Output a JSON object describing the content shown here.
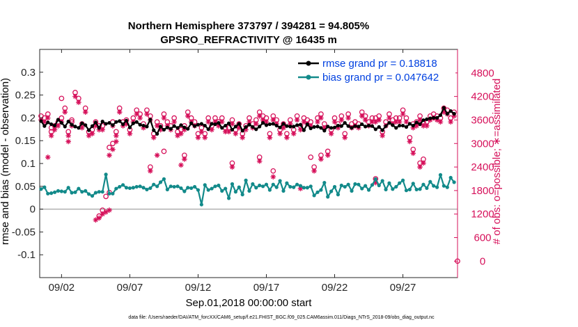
{
  "chart_data": {
    "type": "line",
    "title_line1": "Northern Hemisphere 373797 / 394281 = 94.805%",
    "title_line2": "GPSRO_REFRACTIVITY @ 16435 m",
    "xlabel": "Sep.01,2018 00:00:00 start",
    "ylabel_left": "rmse and bias (model - observation)",
    "ylabel_right": "# of obs: o=possible; ∗=assimilated",
    "footer": "data file: /Users/raeder/DAI/ATM_forcXX/CAM6_setup/f.e21.FHIST_BGC.f09_025.CAM6assim.011/Diags_NTrS_2018-09/obs_diag_output.nc",
    "xlim_days": [
      0.4,
      31.0
    ],
    "ylim_left": [
      -0.15,
      0.35
    ],
    "ylim_right": [
      -420,
      5400
    ],
    "x_ticks": [
      {
        "day": 2,
        "label": "09/02"
      },
      {
        "day": 7,
        "label": "09/07"
      },
      {
        "day": 12,
        "label": "09/12"
      },
      {
        "day": 17,
        "label": "09/17"
      },
      {
        "day": 22,
        "label": "09/22"
      },
      {
        "day": 27,
        "label": "09/27"
      }
    ],
    "y_left_ticks": [
      {
        "value": 0.3,
        "label": "0.3"
      },
      {
        "value": 0.25,
        "label": "0.25"
      },
      {
        "value": 0.2,
        "label": "0.2"
      },
      {
        "value": 0.15,
        "label": "0.15"
      },
      {
        "value": 0.1,
        "label": "0.1"
      },
      {
        "value": 0.05,
        "label": "0.05"
      },
      {
        "value": 0,
        "label": "0"
      },
      {
        "value": -0.05,
        "label": "-0.05"
      },
      {
        "value": -0.1,
        "label": "-0.1"
      }
    ],
    "y_right_ticks": [
      {
        "value": 4800,
        "label": "4800"
      },
      {
        "value": 4200,
        "label": "4200"
      },
      {
        "value": 3600,
        "label": "3600"
      },
      {
        "value": 3000,
        "label": "3000"
      },
      {
        "value": 2400,
        "label": "2400"
      },
      {
        "value": 1800,
        "label": "1800"
      },
      {
        "value": 1200,
        "label": "1200"
      },
      {
        "value": 600,
        "label": "600"
      },
      {
        "value": 0,
        "label": "0"
      }
    ],
    "zero_line": 0,
    "legend": [
      {
        "key": "rmse",
        "label": "rmse grand pr = 0.18818",
        "color": "#000000",
        "text_color": "#0040e0"
      },
      {
        "key": "bias",
        "label": "bias grand pr = 0.047642",
        "color": "#128a8a",
        "text_color": "#0040e0"
      }
    ],
    "colors": {
      "rmse": "#000000",
      "bias": "#128a8a",
      "obs": "#d6105a",
      "zero": "#b0b0b0",
      "right_axis": "#d6105a"
    },
    "x_days": [
      0.5,
      0.75,
      1.0,
      1.25,
      1.5,
      1.75,
      2.0,
      2.25,
      2.5,
      2.75,
      3.0,
      3.25,
      3.5,
      3.75,
      4.0,
      4.25,
      4.5,
      4.75,
      5.0,
      5.25,
      5.5,
      5.75,
      6.0,
      6.25,
      6.5,
      6.75,
      7.0,
      7.25,
      7.5,
      7.75,
      8.0,
      8.25,
      8.5,
      8.75,
      9.0,
      9.25,
      9.5,
      9.75,
      10.0,
      10.25,
      10.5,
      10.75,
      11.0,
      11.25,
      11.5,
      11.75,
      12.0,
      12.25,
      12.5,
      12.75,
      13.0,
      13.25,
      13.5,
      13.75,
      14.0,
      14.25,
      14.5,
      14.75,
      15.0,
      15.25,
      15.5,
      15.75,
      16.0,
      16.25,
      16.5,
      16.75,
      17.0,
      17.25,
      17.5,
      17.75,
      18.0,
      18.25,
      18.5,
      18.75,
      19.0,
      19.25,
      19.5,
      19.75,
      20.0,
      20.25,
      20.5,
      20.75,
      21.0,
      21.25,
      21.5,
      21.75,
      22.0,
      22.25,
      22.5,
      22.75,
      23.0,
      23.25,
      23.5,
      23.75,
      24.0,
      24.25,
      24.5,
      24.75,
      25.0,
      25.25,
      25.5,
      25.75,
      26.0,
      26.25,
      26.5,
      26.75,
      27.0,
      27.25,
      27.5,
      27.75,
      28.0,
      28.25,
      28.5,
      28.75,
      29.0,
      29.25,
      29.5,
      29.75,
      30.0,
      30.25,
      30.5,
      30.75
    ],
    "rmse": [
      0.193,
      0.182,
      0.19,
      0.186,
      0.183,
      0.196,
      0.189,
      0.181,
      0.192,
      0.185,
      0.181,
      0.178,
      0.188,
      0.184,
      0.173,
      0.182,
      0.19,
      0.178,
      0.192,
      0.187,
      0.189,
      0.184,
      0.191,
      0.193,
      0.186,
      0.194,
      0.179,
      0.188,
      0.191,
      0.185,
      0.183,
      0.181,
      0.196,
      0.173,
      0.165,
      0.181,
      0.174,
      0.179,
      0.176,
      0.182,
      0.178,
      0.184,
      0.179,
      0.176,
      0.188,
      0.182,
      0.185,
      0.187,
      0.183,
      0.175,
      0.187,
      0.186,
      0.189,
      0.178,
      0.183,
      0.188,
      0.174,
      0.181,
      0.187,
      0.172,
      0.18,
      0.185,
      0.18,
      0.175,
      0.181,
      0.189,
      0.184,
      0.186,
      0.187,
      0.183,
      0.179,
      0.187,
      0.182,
      0.181,
      0.181,
      0.184,
      0.185,
      0.173,
      0.186,
      0.177,
      0.18,
      0.181,
      0.178,
      0.172,
      0.181,
      0.178,
      0.179,
      0.183,
      0.182,
      0.189,
      0.182,
      0.178,
      0.182,
      0.181,
      0.186,
      0.181,
      0.183,
      0.182,
      0.175,
      0.18,
      0.173,
      0.182,
      0.189,
      0.184,
      0.178,
      0.183,
      0.183,
      0.18,
      0.187,
      0.183,
      0.19,
      0.186,
      0.195,
      0.197,
      0.199,
      0.2,
      0.2,
      0.206,
      0.222,
      0.209,
      0.215,
      0.209,
      0.202,
      0.198,
      0.195,
      0.196
    ],
    "bias": [
      0.044,
      0.048,
      0.034,
      0.035,
      0.037,
      0.04,
      0.039,
      0.038,
      0.047,
      0.036,
      0.037,
      0.045,
      0.038,
      0.04,
      0.033,
      0.029,
      0.036,
      0.038,
      0.038,
      0.076,
      0.034,
      0.034,
      0.045,
      0.049,
      0.053,
      0.047,
      0.046,
      0.047,
      0.049,
      0.05,
      0.047,
      0.043,
      0.046,
      0.054,
      0.05,
      0.059,
      0.066,
      0.043,
      0.05,
      0.049,
      0.05,
      0.046,
      0.039,
      0.047,
      0.046,
      0.049,
      0.042,
      0.01,
      0.053,
      0.042,
      0.045,
      0.05,
      0.052,
      0.04,
      0.045,
      0.024,
      0.055,
      0.038,
      0.048,
      0.032,
      0.063,
      0.04,
      0.055,
      0.047,
      0.052,
      0.05,
      0.054,
      0.042,
      0.054,
      0.048,
      0.062,
      0.04,
      0.057,
      0.049,
      0.048,
      0.054,
      0.051,
      0.047,
      0.047,
      0.05,
      0.03,
      0.037,
      0.042,
      0.058,
      0.027,
      0.039,
      0.049,
      0.032,
      0.052,
      0.049,
      0.054,
      0.04,
      0.055,
      0.054,
      0.045,
      0.051,
      0.042,
      0.053,
      0.066,
      0.052,
      0.062,
      0.043,
      0.057,
      0.044,
      0.049,
      0.057,
      0.063,
      0.041,
      0.043,
      0.056,
      0.043,
      0.044,
      0.054,
      0.046,
      0.06,
      0.051,
      0.048,
      0.075,
      0.051,
      0.048,
      0.069,
      0.059,
      0.052,
      0.06,
      0.055,
      0.05
    ],
    "obs_possible": [
      3700,
      3650,
      3750,
      3300,
      3450,
      3550,
      3650,
      3900,
      3300,
      3550,
      4300,
      4150,
      3500,
      3900,
      3300,
      3350,
      3550,
      3450,
      3450,
      1650,
      1750,
      3550,
      3300,
      3900,
      3550,
      3600,
      3350,
      3650,
      3850,
      3750,
      3500,
      3850,
      3700,
      3250,
      3550,
      3450,
      3750,
      3550,
      3450,
      3650,
      3300,
      3350,
      3450,
      3800,
      3650,
      3550,
      3250,
      3400,
      3250,
      3650,
      3450,
      3650,
      3550,
      3650,
      3400,
      3400,
      3600,
      3350,
      3500,
      3250,
      3450,
      3650,
      3500,
      3600,
      3800,
      3700,
      3650,
      3250,
      3700,
      3600,
      3350,
      3500,
      3250,
      3600,
      3350,
      3700,
      3450,
      3650,
      3600,
      3550,
      2400,
      3650,
      3750,
      3500,
      2800,
      3350,
      3650,
      3500,
      3700,
      3250,
      3750,
      3500,
      3550,
      3500,
      3800,
      3700,
      3550,
      3650,
      3650,
      3700,
      3300,
      3550,
      3750,
      3600,
      3650,
      3650,
      3850,
      3650,
      3150,
      3500,
      3550,
      3700,
      3550,
      3550,
      3700,
      3750,
      3700,
      3650,
      3900,
      3850,
      3650,
      3800,
      3650,
      3650,
      3750,
      3600
    ],
    "obs_assim": [
      3600,
      3550,
      3650,
      3200,
      3350,
      3450,
      3550,
      3800,
      3200,
      3450,
      4200,
      4050,
      3400,
      3800,
      3200,
      3250,
      3450,
      3350,
      3350,
      1250,
      1300,
      3450,
      3200,
      3800,
      3450,
      3500,
      3250,
      3550,
      3750,
      3650,
      3400,
      3750,
      3600,
      3150,
      3450,
      3350,
      3650,
      3450,
      3350,
      3550,
      3200,
      3250,
      3350,
      3700,
      3550,
      3450,
      3150,
      3300,
      3150,
      3550,
      3350,
      3550,
      3450,
      3550,
      3300,
      3300,
      3500,
      3250,
      3400,
      3150,
      3350,
      3550,
      3400,
      3500,
      3700,
      3600,
      3550,
      3150,
      3600,
      3500,
      3250,
      3400,
      3150,
      3500,
      3250,
      3600,
      3350,
      3550,
      3500,
      3450,
      2300,
      3550,
      3650,
      3400,
      2700,
      3250,
      3550,
      3400,
      3600,
      3150,
      3650,
      3400,
      3450,
      3400,
      3700,
      3600,
      3450,
      3550,
      3550,
      3600,
      3200,
      3450,
      3650,
      3500,
      3550,
      3550,
      3750,
      3550,
      3050,
      3400,
      3450,
      3600,
      3450,
      3450,
      3600,
      3650,
      3600,
      3550,
      3800,
      3750,
      3550,
      3700,
      3550,
      3550,
      3650,
      3500
    ],
    "obs_possible_extra": [
      {
        "day": 1.25,
        "value": 3400
      },
      {
        "day": 2.0,
        "value": 4150
      },
      {
        "day": 2.75,
        "value": 3600
      },
      {
        "day": 5.5,
        "value": 2900
      },
      {
        "day": 5.75,
        "value": 3000
      },
      {
        "day": 8.5,
        "value": 2400
      },
      {
        "day": 9.5,
        "value": 2800
      },
      {
        "day": 11.0,
        "value": 2700
      },
      {
        "day": 14.5,
        "value": 2500
      },
      {
        "day": 16.5,
        "value": 2650
      },
      {
        "day": 17.5,
        "value": 2300
      },
      {
        "day": 20.25,
        "value": 2650
      },
      {
        "day": 21.0,
        "value": 2700
      },
      {
        "day": 25.0,
        "value": 2100
      },
      {
        "day": 27.75,
        "value": 2850
      },
      {
        "day": 28.25,
        "value": 2500
      },
      {
        "day": 28.5,
        "value": 2600
      },
      {
        "day": 4.75,
        "value": 1150
      },
      {
        "day": 5.0,
        "value": 1300
      },
      {
        "day": 31.0,
        "value": 0
      }
    ],
    "obs_assim_extra": [
      {
        "day": 1.0,
        "value": 2650
      },
      {
        "day": 2.5,
        "value": 3050
      },
      {
        "day": 4.5,
        "value": 1050
      },
      {
        "day": 4.75,
        "value": 1100
      },
      {
        "day": 5.5,
        "value": 2700
      },
      {
        "day": 5.75,
        "value": 2850
      },
      {
        "day": 6.0,
        "value": 3050
      },
      {
        "day": 8.5,
        "value": 2300
      },
      {
        "day": 9.0,
        "value": 2700
      },
      {
        "day": 10.75,
        "value": 2450
      },
      {
        "day": 11.0,
        "value": 2600
      },
      {
        "day": 14.5,
        "value": 2400
      },
      {
        "day": 16.5,
        "value": 2550
      },
      {
        "day": 17.5,
        "value": 2150
      },
      {
        "day": 19.5,
        "value": 1850
      },
      {
        "day": 21.0,
        "value": 2600
      },
      {
        "day": 25.0,
        "value": 2000
      },
      {
        "day": 27.75,
        "value": 2750
      },
      {
        "day": 28.25,
        "value": 2400
      },
      {
        "day": 28.5,
        "value": 2500
      },
      {
        "day": 5.0,
        "value": 1200
      }
    ]
  }
}
